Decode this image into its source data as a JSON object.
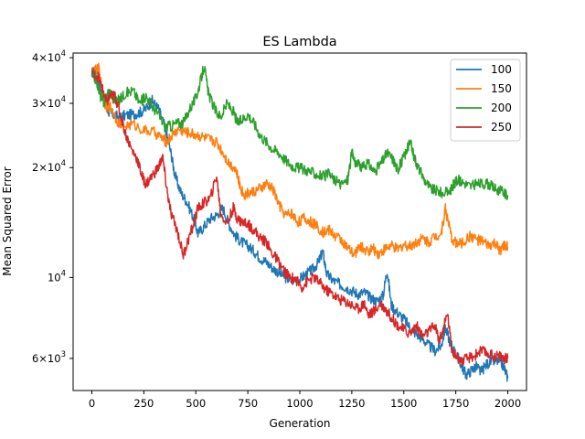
{
  "chart_data": {
    "type": "line",
    "title": "ES Lambda",
    "xlabel": "Generation",
    "ylabel": "Mean Squared Error",
    "xlim": [
      -90,
      2090
    ],
    "ylim": [
      4900,
      41200
    ],
    "yscale": "log",
    "x_ticks": [
      0,
      250,
      500,
      750,
      1000,
      1250,
      1500,
      1750,
      2000
    ],
    "x_tick_labels": [
      "0",
      "250",
      "500",
      "750",
      "1000",
      "1250",
      "1500",
      "1750",
      "2000"
    ],
    "y_ticks": [
      {
        "value": 6000,
        "mantissa": "6",
        "exp": "3"
      },
      {
        "value": 10000,
        "mantissa": "",
        "exp": "4"
      },
      {
        "value": 20000,
        "mantissa": "2",
        "exp": "4"
      },
      {
        "value": 30000,
        "mantissa": "3",
        "exp": "4"
      },
      {
        "value": 40000,
        "mantissa": "4",
        "exp": "4"
      }
    ],
    "grid": false,
    "legend_position": "top-right",
    "series": [
      {
        "name": "100",
        "color": "#1f77b4",
        "points": [
          [
            0,
            36500
          ],
          [
            20,
            36000
          ],
          [
            40,
            33000
          ],
          [
            60,
            31000
          ],
          [
            80,
            28500
          ],
          [
            100,
            28000
          ],
          [
            130,
            27500
          ],
          [
            160,
            27800
          ],
          [
            200,
            28000
          ],
          [
            230,
            28300
          ],
          [
            260,
            29000
          ],
          [
            290,
            30500
          ],
          [
            320,
            29000
          ],
          [
            350,
            26000
          ],
          [
            380,
            22000
          ],
          [
            400,
            19000
          ],
          [
            430,
            17000
          ],
          [
            460,
            16000
          ],
          [
            490,
            14500
          ],
          [
            510,
            13200
          ],
          [
            540,
            13800
          ],
          [
            570,
            14500
          ],
          [
            600,
            14800
          ],
          [
            630,
            15500
          ],
          [
            660,
            14000
          ],
          [
            690,
            13000
          ],
          [
            720,
            12500
          ],
          [
            750,
            12200
          ],
          [
            780,
            11800
          ],
          [
            810,
            11300
          ],
          [
            840,
            11000
          ],
          [
            870,
            10600
          ],
          [
            900,
            10300
          ],
          [
            930,
            10000
          ],
          [
            960,
            9800
          ],
          [
            1000,
            9900
          ],
          [
            1030,
            10200
          ],
          [
            1060,
            10500
          ],
          [
            1090,
            11000
          ],
          [
            1110,
            11800
          ],
          [
            1130,
            10200
          ],
          [
            1160,
            9800
          ],
          [
            1190,
            9600
          ],
          [
            1220,
            9400
          ],
          [
            1250,
            9200
          ],
          [
            1280,
            9000
          ],
          [
            1310,
            9100
          ],
          [
            1340,
            8800
          ],
          [
            1370,
            8600
          ],
          [
            1400,
            8900
          ],
          [
            1420,
            10500
          ],
          [
            1440,
            8400
          ],
          [
            1470,
            8000
          ],
          [
            1500,
            7700
          ],
          [
            1530,
            7300
          ],
          [
            1560,
            7000
          ],
          [
            1590,
            6800
          ],
          [
            1620,
            6500
          ],
          [
            1650,
            6300
          ],
          [
            1680,
            6500
          ],
          [
            1700,
            7300
          ],
          [
            1720,
            6700
          ],
          [
            1750,
            6200
          ],
          [
            1780,
            5700
          ],
          [
            1800,
            5400
          ],
          [
            1830,
            5600
          ],
          [
            1850,
            5700
          ],
          [
            1870,
            5500
          ],
          [
            1900,
            5800
          ],
          [
            1930,
            5900
          ],
          [
            1960,
            5900
          ],
          [
            1980,
            5700
          ],
          [
            2000,
            5300
          ]
        ]
      },
      {
        "name": "150",
        "color": "#ff7f0e",
        "points": [
          [
            0,
            36500
          ],
          [
            20,
            37000
          ],
          [
            35,
            37500
          ],
          [
            50,
            32000
          ],
          [
            70,
            29000
          ],
          [
            90,
            29500
          ],
          [
            120,
            27000
          ],
          [
            150,
            26000
          ],
          [
            200,
            26300
          ],
          [
            250,
            25300
          ],
          [
            300,
            25000
          ],
          [
            340,
            24000
          ],
          [
            360,
            23500
          ],
          [
            390,
            24700
          ],
          [
            420,
            25500
          ],
          [
            450,
            25000
          ],
          [
            480,
            24800
          ],
          [
            510,
            24500
          ],
          [
            540,
            24200
          ],
          [
            570,
            23800
          ],
          [
            600,
            23500
          ],
          [
            630,
            22000
          ],
          [
            660,
            20500
          ],
          [
            690,
            20000
          ],
          [
            710,
            18000
          ],
          [
            730,
            16800
          ],
          [
            750,
            17000
          ],
          [
            780,
            17200
          ],
          [
            810,
            17500
          ],
          [
            840,
            18000
          ],
          [
            870,
            17500
          ],
          [
            900,
            15800
          ],
          [
            930,
            14800
          ],
          [
            960,
            15000
          ],
          [
            990,
            14200
          ],
          [
            1020,
            14500
          ],
          [
            1050,
            14200
          ],
          [
            1080,
            13900
          ],
          [
            1110,
            13300
          ],
          [
            1140,
            13500
          ],
          [
            1170,
            13000
          ],
          [
            1200,
            12700
          ],
          [
            1230,
            12000
          ],
          [
            1260,
            11500
          ],
          [
            1290,
            12200
          ],
          [
            1320,
            11800
          ],
          [
            1350,
            12000
          ],
          [
            1380,
            11600
          ],
          [
            1410,
            12000
          ],
          [
            1440,
            12200
          ],
          [
            1470,
            11900
          ],
          [
            1500,
            12300
          ],
          [
            1530,
            12200
          ],
          [
            1560,
            12500
          ],
          [
            1590,
            12800
          ],
          [
            1620,
            12500
          ],
          [
            1650,
            13000
          ],
          [
            1680,
            13200
          ],
          [
            1700,
            15500
          ],
          [
            1710,
            14500
          ],
          [
            1730,
            12800
          ],
          [
            1760,
            12300
          ],
          [
            1790,
            12500
          ],
          [
            1820,
            13000
          ],
          [
            1850,
            12700
          ],
          [
            1880,
            12500
          ],
          [
            1910,
            12200
          ],
          [
            1940,
            12400
          ],
          [
            1960,
            11800
          ],
          [
            1980,
            12200
          ],
          [
            2000,
            12100
          ]
        ]
      },
      {
        "name": "200",
        "color": "#2ca02c",
        "points": [
          [
            0,
            36000
          ],
          [
            20,
            35000
          ],
          [
            40,
            31500
          ],
          [
            60,
            30000
          ],
          [
            80,
            32500
          ],
          [
            100,
            31000
          ],
          [
            130,
            30500
          ],
          [
            160,
            32000
          ],
          [
            200,
            32500
          ],
          [
            230,
            30000
          ],
          [
            260,
            31500
          ],
          [
            290,
            29500
          ],
          [
            320,
            28000
          ],
          [
            350,
            26000
          ],
          [
            380,
            26000
          ],
          [
            410,
            26500
          ],
          [
            440,
            26500
          ],
          [
            470,
            29000
          ],
          [
            500,
            31000
          ],
          [
            520,
            34000
          ],
          [
            540,
            38000
          ],
          [
            560,
            32000
          ],
          [
            590,
            29000
          ],
          [
            620,
            27500
          ],
          [
            650,
            30000
          ],
          [
            680,
            28500
          ],
          [
            700,
            26500
          ],
          [
            720,
            27000
          ],
          [
            750,
            28000
          ],
          [
            780,
            26500
          ],
          [
            810,
            24500
          ],
          [
            840,
            23500
          ],
          [
            870,
            22500
          ],
          [
            900,
            22000
          ],
          [
            930,
            21000
          ],
          [
            960,
            20300
          ],
          [
            990,
            20000
          ],
          [
            1020,
            19800
          ],
          [
            1050,
            19500
          ],
          [
            1080,
            19200
          ],
          [
            1110,
            18900
          ],
          [
            1140,
            19200
          ],
          [
            1170,
            18400
          ],
          [
            1200,
            18000
          ],
          [
            1230,
            18500
          ],
          [
            1250,
            22000
          ],
          [
            1270,
            20500
          ],
          [
            1300,
            20000
          ],
          [
            1330,
            20500
          ],
          [
            1360,
            19500
          ],
          [
            1390,
            20500
          ],
          [
            1420,
            22000
          ],
          [
            1450,
            21000
          ],
          [
            1470,
            19700
          ],
          [
            1490,
            20800
          ],
          [
            1510,
            22000
          ],
          [
            1530,
            23500
          ],
          [
            1550,
            21500
          ],
          [
            1570,
            20000
          ],
          [
            1600,
            18500
          ],
          [
            1630,
            17500
          ],
          [
            1660,
            17300
          ],
          [
            1690,
            17000
          ],
          [
            1720,
            17200
          ],
          [
            1740,
            18000
          ],
          [
            1760,
            18500
          ],
          [
            1790,
            18200
          ],
          [
            1820,
            17800
          ],
          [
            1850,
            18000
          ],
          [
            1880,
            18100
          ],
          [
            1910,
            18000
          ],
          [
            1940,
            17500
          ],
          [
            1970,
            17200
          ],
          [
            2000,
            16800
          ]
        ]
      },
      {
        "name": "250",
        "color": "#d62728",
        "points": [
          [
            0,
            36500
          ],
          [
            30,
            35500
          ],
          [
            50,
            33000
          ],
          [
            70,
            30000
          ],
          [
            90,
            31500
          ],
          [
            110,
            31500
          ],
          [
            130,
            29000
          ],
          [
            160,
            25000
          ],
          [
            190,
            22500
          ],
          [
            220,
            21000
          ],
          [
            240,
            19000
          ],
          [
            260,
            18000
          ],
          [
            290,
            19000
          ],
          [
            320,
            20000
          ],
          [
            340,
            21500
          ],
          [
            360,
            17500
          ],
          [
            380,
            15000
          ],
          [
            410,
            13500
          ],
          [
            440,
            11500
          ],
          [
            460,
            12500
          ],
          [
            490,
            14000
          ],
          [
            510,
            15500
          ],
          [
            540,
            16000
          ],
          [
            570,
            16500
          ],
          [
            600,
            19000
          ],
          [
            620,
            15000
          ],
          [
            650,
            14000
          ],
          [
            680,
            15500
          ],
          [
            700,
            14500
          ],
          [
            720,
            14200
          ],
          [
            750,
            14000
          ],
          [
            780,
            13500
          ],
          [
            810,
            12800
          ],
          [
            840,
            12500
          ],
          [
            860,
            11800
          ],
          [
            890,
            11200
          ],
          [
            920,
            10500
          ],
          [
            950,
            10000
          ],
          [
            980,
            9900
          ],
          [
            1010,
            9400
          ],
          [
            1040,
            9800
          ],
          [
            1070,
            10000
          ],
          [
            1100,
            9600
          ],
          [
            1130,
            9200
          ],
          [
            1160,
            9000
          ],
          [
            1190,
            8700
          ],
          [
            1220,
            8600
          ],
          [
            1250,
            8400
          ],
          [
            1280,
            8200
          ],
          [
            1310,
            8500
          ],
          [
            1330,
            7900
          ],
          [
            1360,
            8100
          ],
          [
            1390,
            8500
          ],
          [
            1410,
            8200
          ],
          [
            1440,
            7800
          ],
          [
            1470,
            7400
          ],
          [
            1500,
            7200
          ],
          [
            1530,
            7000
          ],
          [
            1560,
            7400
          ],
          [
            1590,
            6900
          ],
          [
            1620,
            7100
          ],
          [
            1650,
            7400
          ],
          [
            1670,
            6700
          ],
          [
            1690,
            7200
          ],
          [
            1710,
            8000
          ],
          [
            1730,
            6400
          ],
          [
            1750,
            6100
          ],
          [
            1780,
            5900
          ],
          [
            1810,
            6000
          ],
          [
            1840,
            6100
          ],
          [
            1870,
            6300
          ],
          [
            1900,
            6200
          ],
          [
            1930,
            6100
          ],
          [
            1960,
            6100
          ],
          [
            1980,
            6000
          ],
          [
            2000,
            6000
          ]
        ]
      }
    ]
  }
}
